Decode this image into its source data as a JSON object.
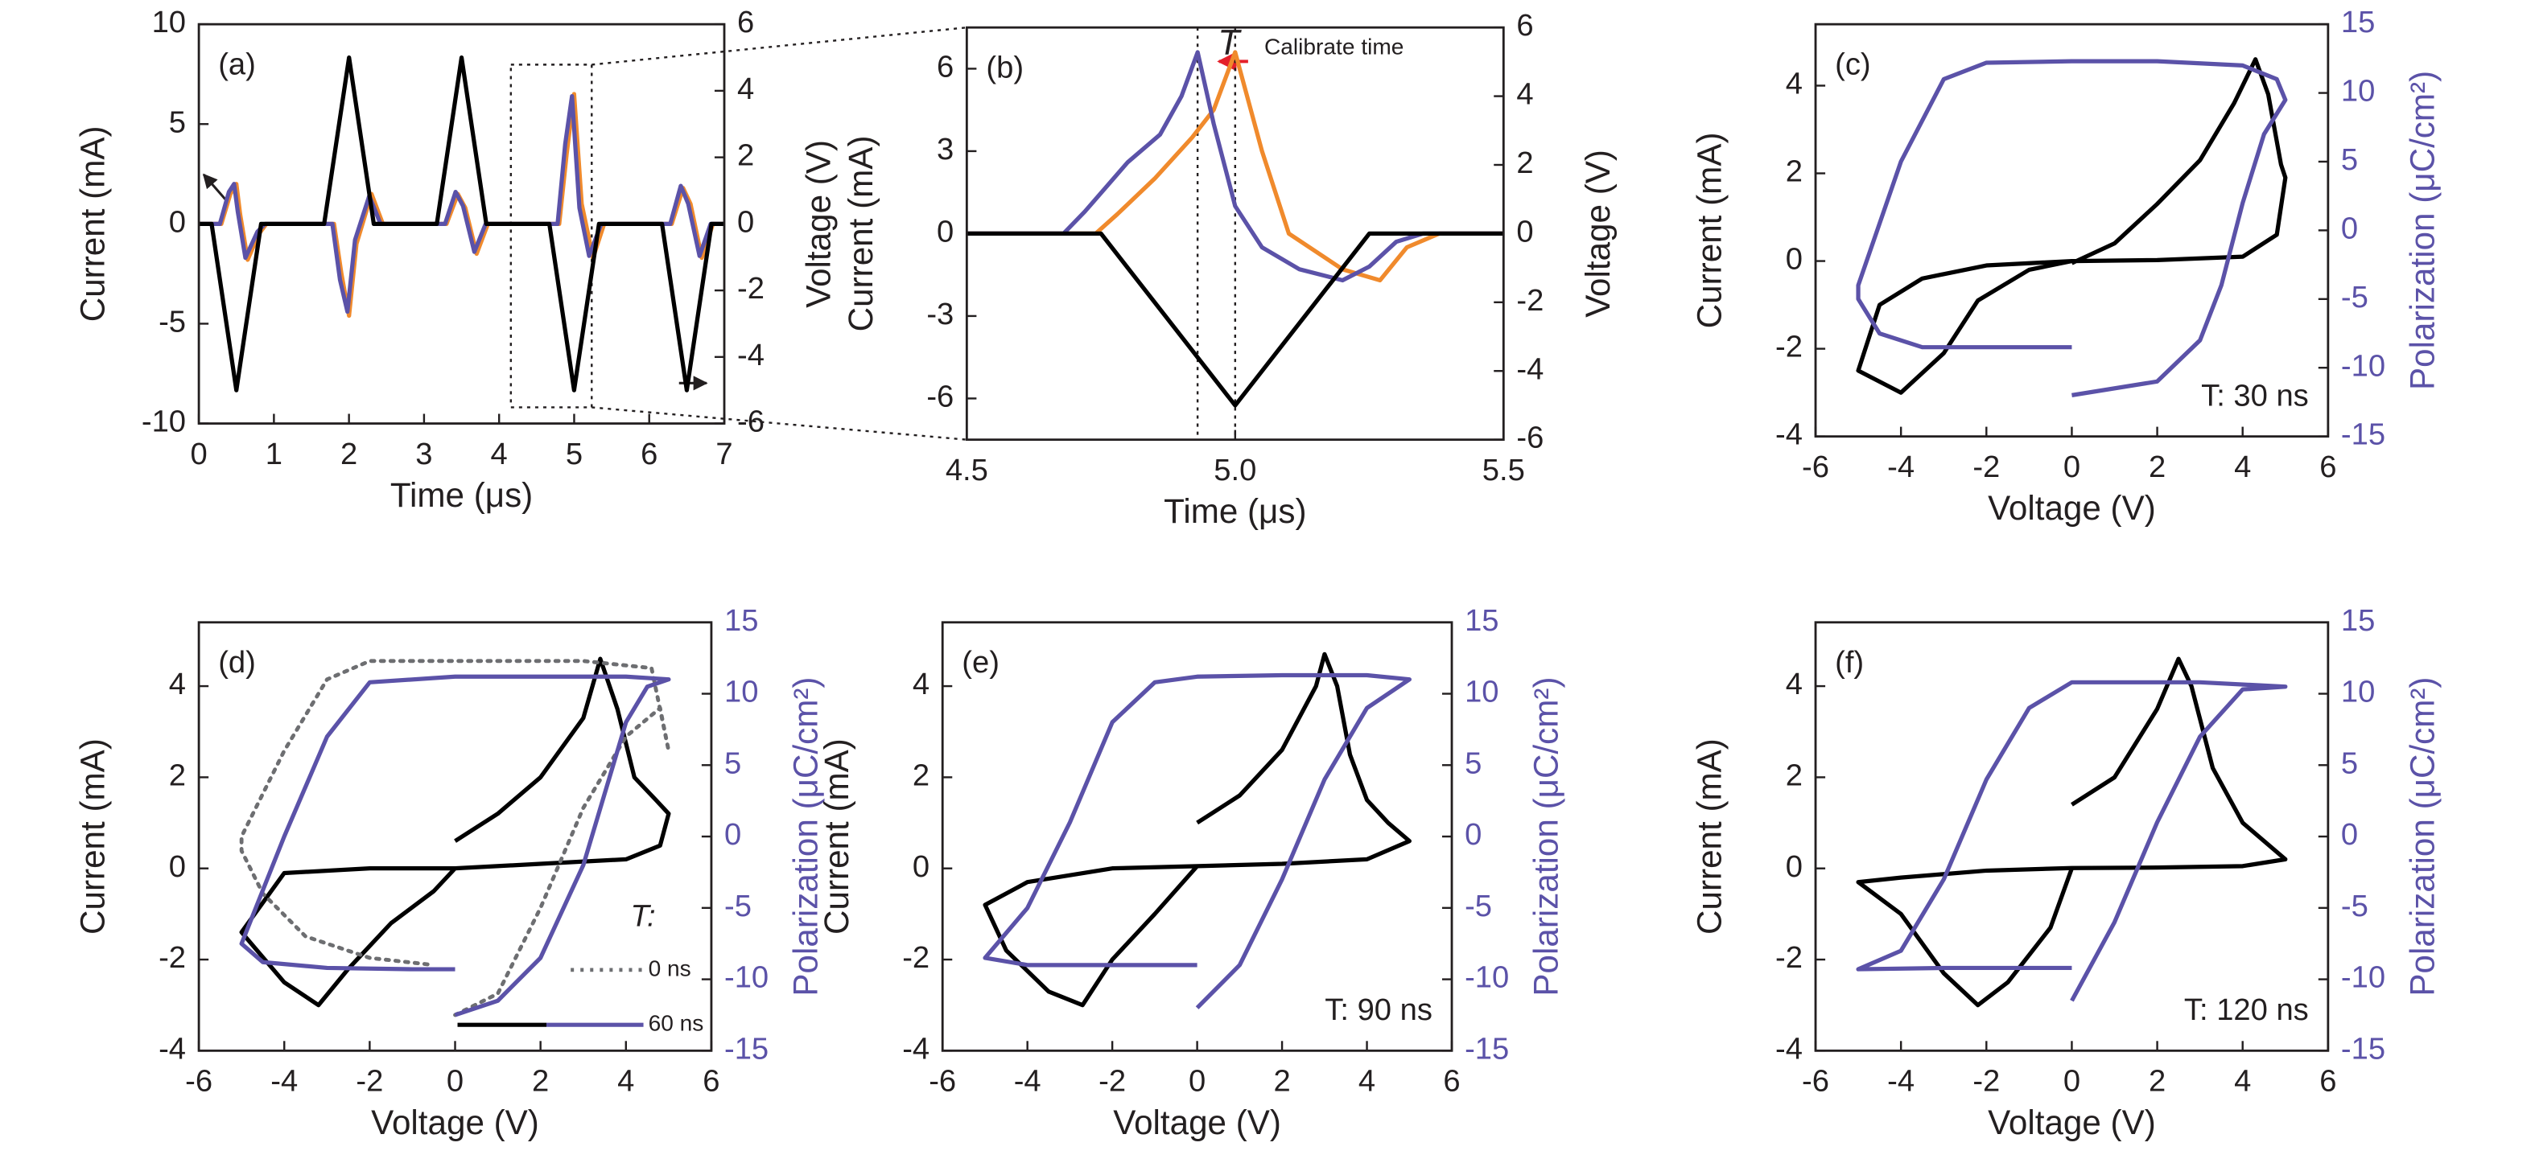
{
  "chart_data": [
    {
      "type": "line",
      "label": "(a)",
      "xlabel": "Time (μs)",
      "ylabel": "Current (mA)",
      "y2label": "Voltage (V)",
      "xlim": [
        0,
        7
      ],
      "xticks": [
        0,
        1,
        2,
        3,
        4,
        5,
        6,
        7
      ],
      "ylim": [
        -10,
        10
      ],
      "yticks": [
        -10,
        -5,
        0,
        5,
        10
      ],
      "y2lim": [
        -6,
        6
      ],
      "y2ticks": [
        -6,
        -4,
        -2,
        0,
        2,
        4,
        6
      ],
      "y2_color": "#231f20",
      "series": [
        {
          "color": "#f08a2c",
          "x": [
            0,
            0.3,
            0.42,
            0.5,
            0.55,
            0.65,
            0.8,
            0.9,
            1.8,
            1.9,
            2.0,
            2.1,
            2.3,
            2.45,
            3.3,
            3.45,
            3.55,
            3.7,
            3.85,
            4.8,
            4.9,
            5.0,
            5.1,
            5.25,
            5.4,
            6.3,
            6.45,
            6.55,
            6.7,
            6.85,
            7
          ],
          "values": [
            0,
            0,
            1.5,
            2,
            0.5,
            -1.8,
            -0.5,
            0,
            0,
            -2.5,
            -4.6,
            -1,
            1.5,
            0,
            0,
            1.5,
            0.8,
            -1.5,
            0,
            0,
            3.5,
            6.5,
            1,
            -1.7,
            0,
            0,
            1.8,
            1,
            -1.7,
            0,
            0
          ]
        },
        {
          "color": "#5b52a8",
          "x": [
            0,
            0.28,
            0.4,
            0.47,
            0.52,
            0.62,
            0.78,
            0.88,
            1.78,
            1.88,
            1.98,
            2.08,
            2.27,
            2.42,
            3.28,
            3.42,
            3.52,
            3.67,
            3.82,
            4.78,
            4.88,
            4.97,
            5.07,
            5.2,
            5.36,
            6.28,
            6.42,
            6.52,
            6.67,
            6.82,
            7
          ],
          "values": [
            0,
            0,
            1.6,
            2,
            0.6,
            -1.7,
            -0.4,
            0,
            0,
            -2.8,
            -4.4,
            -0.8,
            1.4,
            0,
            0,
            1.6,
            0.9,
            -1.4,
            0,
            0,
            4,
            6.4,
            0.8,
            -1.6,
            0,
            0,
            1.9,
            1,
            -1.6,
            0,
            0
          ]
        },
        {
          "color": "#000000",
          "axis": "y2",
          "x": [
            0,
            0.17,
            0.5,
            0.83,
            1.67,
            2,
            2.33,
            3.17,
            3.5,
            3.83,
            4.67,
            5,
            5.33,
            6.17,
            6.5,
            6.83,
            7
          ],
          "values": [
            0,
            0,
            -5,
            0,
            0,
            5,
            0,
            0,
            5,
            0,
            0,
            -5,
            0,
            0,
            -5,
            0,
            0
          ]
        }
      ]
    },
    {
      "type": "line",
      "label": "(b)",
      "xlabel": "Time (μs)",
      "ylabel": "Current (mA)",
      "y2label": "Voltage (V)",
      "xlim": [
        4.5,
        5.5
      ],
      "xticks": [
        4.5,
        {
          "value": 5,
          "label": "5.0"
        },
        5.5
      ],
      "ylim": [
        -7.5,
        7.5
      ],
      "yticks": [
        -6,
        -3,
        0,
        3,
        6
      ],
      "y2lim": [
        -6,
        6
      ],
      "y2ticks": [
        -6,
        -4,
        -2,
        0,
        2,
        4,
        6
      ],
      "y2_color": "#231f20",
      "vlines": [
        4.93,
        5.0
      ],
      "annotations": [
        "T",
        "Calibrate time"
      ],
      "series": [
        {
          "color": "#f08a2c",
          "x": [
            4.5,
            4.74,
            4.78,
            4.85,
            4.92,
            4.96,
            5.0,
            5.05,
            5.1,
            5.2,
            5.27,
            5.32,
            5.38,
            5.5
          ],
          "values": [
            0,
            0,
            0.7,
            2,
            3.5,
            4.5,
            6.6,
            3,
            0,
            -1.3,
            -1.7,
            -0.5,
            0,
            0
          ]
        },
        {
          "color": "#5b52a8",
          "x": [
            4.5,
            4.68,
            4.72,
            4.8,
            4.86,
            4.9,
            4.93,
            4.96,
            5.0,
            5.05,
            5.12,
            5.2,
            5.25,
            5.3,
            5.35,
            5.5
          ],
          "values": [
            0,
            0,
            0.8,
            2.6,
            3.6,
            5,
            6.6,
            4,
            1,
            -0.5,
            -1.3,
            -1.7,
            -1.2,
            -0.3,
            0,
            0
          ]
        },
        {
          "color": "#000000",
          "axis": "y2",
          "x": [
            4.5,
            4.75,
            5.0,
            5.25,
            5.5
          ],
          "values": [
            0,
            0,
            -5,
            0,
            0
          ]
        }
      ]
    },
    {
      "type": "line",
      "label": "(c)",
      "xlabel": "Voltage (V)",
      "ylabel": "Current (mA)",
      "y2label": "Polarization (μC/cm²)",
      "xlim": [
        -6,
        6
      ],
      "xticks": [
        -6,
        -4,
        -2,
        0,
        2,
        4,
        6
      ],
      "ylim": [
        -4,
        5.4
      ],
      "yticks": [
        -4,
        -2,
        0,
        2,
        4
      ],
      "y2lim": [
        -15,
        15
      ],
      "y2ticks": [
        -15,
        -10,
        -5,
        0,
        5,
        10,
        15
      ],
      "y2_color": "#5b52a8",
      "annotations": [
        "T: 30 ns"
      ],
      "series": [
        {
          "color": "#000000",
          "x": [
            0,
            1,
            2,
            3,
            3.8,
            4.3,
            4.6,
            4.9,
            5,
            4.8,
            4,
            2,
            0,
            -2,
            -3.5,
            -4.5,
            -5,
            -4,
            -3,
            -2.2,
            -1,
            0
          ],
          "values": [
            -0.05,
            0.4,
            1.3,
            2.3,
            3.6,
            4.6,
            3.8,
            2.2,
            1.9,
            0.6,
            0.1,
            0.02,
            0,
            -0.1,
            -0.4,
            -1,
            -2.5,
            -3,
            -2.1,
            -0.9,
            -0.2,
            0
          ]
        },
        {
          "color": "#5b52a8",
          "axis": "y2",
          "x": [
            0,
            2,
            3,
            3.5,
            4,
            4.5,
            5,
            4.8,
            4,
            2,
            0,
            -2,
            -3,
            -4,
            -5,
            -5,
            -4.5,
            -3.5,
            -2,
            0
          ],
          "values": [
            -12,
            -11,
            -8,
            -4,
            2,
            7,
            9.5,
            11,
            12,
            12.3,
            12.3,
            12.2,
            11,
            5,
            -4,
            -5,
            -7.5,
            -8.5,
            -8.5,
            -8.5
          ]
        }
      ]
    },
    {
      "type": "line",
      "label": "(d)",
      "xlabel": "Voltage (V)",
      "ylabel": "Current (mA)",
      "y2label": "Polarization (μC/cm²)",
      "xlim": [
        -6,
        6
      ],
      "xticks": [
        -6,
        -4,
        -2,
        0,
        2,
        4,
        6
      ],
      "ylim": [
        -4,
        5.4
      ],
      "yticks": [
        -4,
        -2,
        0,
        2,
        4
      ],
      "y2lim": [
        -15,
        15
      ],
      "y2ticks": [
        -15,
        -10,
        -5,
        0,
        5,
        10,
        15
      ],
      "y2_color": "#5b52a8",
      "legend_title": "T:",
      "series": [
        {
          "color": "#000000",
          "x": [
            0,
            1,
            2,
            3,
            3.4,
            3.8,
            4.2,
            4.7,
            5,
            4.8,
            4,
            2,
            0,
            -2,
            -4,
            -5,
            -4,
            -3.2,
            -2.5,
            -1.5,
            -0.5,
            0
          ],
          "values": [
            0.6,
            1.2,
            2,
            3.3,
            4.6,
            3.5,
            2,
            1.5,
            1.2,
            0.5,
            0.2,
            0.1,
            0,
            0,
            -0.1,
            -1.4,
            -2.5,
            -3,
            -2.2,
            -1.2,
            -0.5,
            0
          ]
        },
        {
          "name": "0 ns",
          "color": "#6d6e71",
          "style": "dotted",
          "axis": "y2",
          "x": [
            0,
            1,
            2,
            3,
            4,
            4.8,
            5,
            4.6,
            3,
            0,
            -2,
            -3,
            -4,
            -5,
            -5,
            -4.5,
            -3.5,
            -2,
            -0.5
          ],
          "values": [
            -12.5,
            -11,
            -5,
            2,
            7,
            9,
            6,
            11.8,
            12.3,
            12.3,
            12.3,
            11,
            6,
            0,
            -1,
            -4,
            -7,
            -8.5,
            -9
          ]
        },
        {
          "name": "60 ns",
          "color": "#5b52a8",
          "axis": "y2",
          "x": [
            0,
            1,
            2,
            3,
            3.5,
            4,
            4.5,
            5,
            4,
            2,
            0,
            -2,
            -3,
            -4,
            -5,
            -4.5,
            -3,
            -1,
            0
          ],
          "values": [
            -12.5,
            -11.5,
            -8.5,
            -2,
            3,
            8,
            10.5,
            11,
            11.2,
            11.2,
            11.2,
            10.8,
            7,
            0,
            -7.5,
            -8.8,
            -9.2,
            -9.3,
            -9.3
          ]
        }
      ]
    },
    {
      "type": "line",
      "label": "(e)",
      "xlabel": "Voltage (V)",
      "ylabel": "Current (mA)",
      "y2label": "Polarization (μC/cm²)",
      "xlim": [
        -6,
        6
      ],
      "xticks": [
        -6,
        -4,
        -2,
        0,
        2,
        4,
        6
      ],
      "ylim": [
        -4,
        5.4
      ],
      "yticks": [
        -4,
        -2,
        0,
        2,
        4
      ],
      "y2lim": [
        -15,
        15
      ],
      "y2ticks": [
        -15,
        -10,
        -5,
        0,
        5,
        10,
        15
      ],
      "y2_color": "#5b52a8",
      "annotations": [
        "T: 90 ns"
      ],
      "series": [
        {
          "color": "#000000",
          "x": [
            0,
            1,
            2,
            2.8,
            3,
            3.3,
            3.6,
            4,
            4.5,
            5,
            4,
            2,
            0,
            -2,
            -4,
            -5,
            -4.5,
            -3.5,
            -2.7,
            -2,
            -1,
            0
          ],
          "values": [
            1,
            1.6,
            2.6,
            4,
            4.7,
            4,
            2.5,
            1.5,
            1,
            0.6,
            0.2,
            0.1,
            0.05,
            0,
            -0.3,
            -0.8,
            -1.8,
            -2.7,
            -3,
            -2,
            -1,
            0.05
          ]
        },
        {
          "color": "#5b52a8",
          "axis": "y2",
          "x": [
            0,
            1,
            2,
            3,
            4,
            5,
            4,
            2,
            0,
            -1,
            -2,
            -3,
            -4,
            -5,
            -4,
            -2,
            0
          ],
          "values": [
            -12,
            -9,
            -3,
            4,
            9,
            11,
            11.3,
            11.3,
            11.2,
            10.8,
            8,
            1,
            -5,
            -8.5,
            -9,
            -9,
            -9
          ]
        }
      ]
    },
    {
      "type": "line",
      "label": "(f)",
      "xlabel": "Voltage (V)",
      "ylabel": "Current (mA)",
      "y2label": "Polarization (μC/cm²)",
      "xlim": [
        -6,
        6
      ],
      "xticks": [
        -6,
        -4,
        -2,
        0,
        2,
        4,
        6
      ],
      "ylim": [
        -4,
        5.4
      ],
      "yticks": [
        -4,
        -2,
        0,
        2,
        4
      ],
      "y2lim": [
        -15,
        15
      ],
      "y2ticks": [
        -15,
        -10,
        -5,
        0,
        5,
        10,
        15
      ],
      "y2_color": "#5b52a8",
      "annotations": [
        "T: 120 ns"
      ],
      "series": [
        {
          "color": "#000000",
          "x": [
            0,
            1,
            2,
            2.5,
            2.8,
            3.3,
            4,
            5,
            4,
            2,
            0,
            -2,
            -4,
            -5,
            -4,
            -3,
            -2.2,
            -1.5,
            -0.5,
            0
          ],
          "values": [
            1.4,
            2,
            3.5,
            4.6,
            4,
            2.2,
            1,
            0.2,
            0.05,
            0.02,
            0.01,
            -0.05,
            -0.2,
            -0.3,
            -1,
            -2.3,
            -3,
            -2.5,
            -1.3,
            0
          ]
        },
        {
          "color": "#5b52a8",
          "axis": "y2",
          "x": [
            0,
            1,
            2,
            3,
            4,
            5,
            3,
            1,
            0,
            -1,
            -2,
            -3,
            -4,
            -5,
            -3,
            0
          ],
          "values": [
            -11.5,
            -6,
            1,
            7,
            10.3,
            10.5,
            10.8,
            10.8,
            10.8,
            9,
            4,
            -3,
            -8,
            -9.3,
            -9.2,
            -9.2
          ]
        }
      ]
    }
  ]
}
